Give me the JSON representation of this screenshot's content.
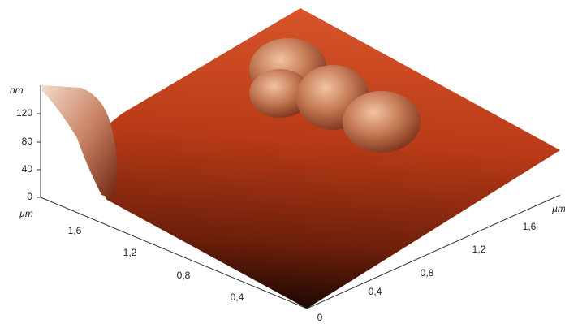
{
  "z_axis": {
    "unit": "nm",
    "ticks": [
      "0",
      "40",
      "80",
      "120"
    ]
  },
  "left_axis": {
    "unit": "µm",
    "ticks": [
      "0,4",
      "0,8",
      "1,2",
      "1,6"
    ]
  },
  "right_axis": {
    "unit": "µm",
    "ticks": [
      "0",
      "0,4",
      "0,8",
      "1,2",
      "1,6"
    ]
  }
}
